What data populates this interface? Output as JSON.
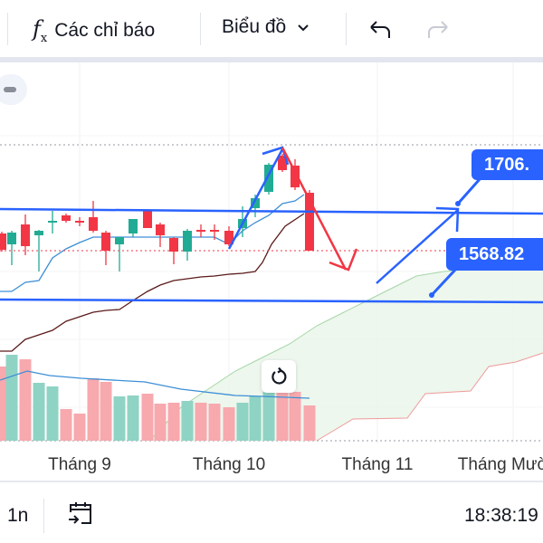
{
  "toolbar": {
    "indicators_icon": "fx-icon",
    "indicators_label": "Các chỉ báo",
    "chart_type_label": "Biểu đồ",
    "chart_type_icon": "chevron-down-icon",
    "undo_icon": "undo-icon",
    "redo_icon": "redo-icon"
  },
  "chart": {
    "price_labels": [
      "1706.",
      "1568.82"
    ],
    "time_axis": [
      "Tháng 9",
      "Tháng 10",
      "Tháng 11",
      "Tháng Mười"
    ],
    "colors": {
      "up": "#22ab94",
      "down": "#f23645",
      "drawing_blue": "#2962ff",
      "drawing_red": "#f23645",
      "fast_ma": "#3d8fd6",
      "slow_ma": "#5b1a1a"
    },
    "reset_icon": "reset-icon"
  },
  "bottom_bar": {
    "interval": "1n",
    "goto_date_icon": "calendar-arrow-icon",
    "clock": "18:38:19"
  }
}
